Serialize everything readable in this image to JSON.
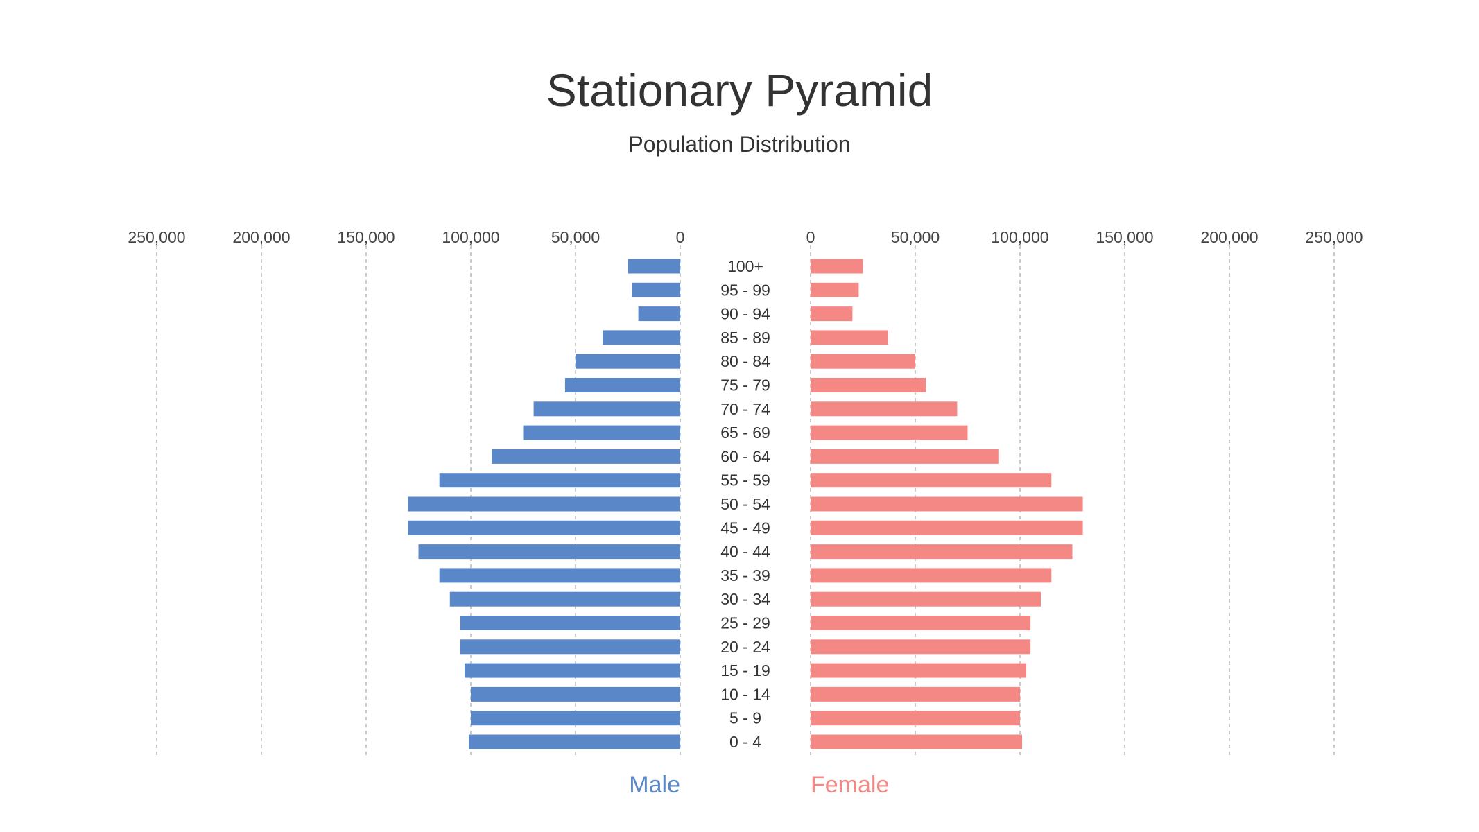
{
  "chart_data": {
    "type": "bar",
    "orientation": "horizontal",
    "layout": "population-pyramid",
    "title": "Stationary Pyramid",
    "subtitle": "Population Distribution",
    "categories": [
      "100+",
      "95 - 99",
      "90 - 94",
      "85 - 89",
      "80 - 84",
      "75 - 79",
      "70 - 74",
      "65 - 69",
      "60 - 64",
      "55 - 59",
      "50 - 54",
      "45 - 49",
      "40 - 44",
      "35 - 39",
      "30 - 34",
      "25 - 29",
      "20 - 24",
      "15 - 19",
      "10 - 14",
      "5 - 9",
      "0 - 4"
    ],
    "series": [
      {
        "name": "Male",
        "side": "left",
        "color": "#5a87c8",
        "values": [
          25000,
          23000,
          20000,
          37000,
          50000,
          55000,
          70000,
          75000,
          90000,
          115000,
          130000,
          130000,
          125000,
          115000,
          110000,
          105000,
          105000,
          103000,
          100000,
          100000,
          101000
        ]
      },
      {
        "name": "Female",
        "side": "right",
        "color": "#f48885",
        "values": [
          25000,
          23000,
          20000,
          37000,
          50000,
          55000,
          70000,
          75000,
          90000,
          115000,
          130000,
          130000,
          125000,
          115000,
          110000,
          105000,
          105000,
          103000,
          100000,
          100000,
          101000
        ]
      }
    ],
    "xlim": [
      0,
      250000
    ],
    "ticks": [
      0,
      50000,
      100000,
      150000,
      200000,
      250000
    ],
    "tick_labels": [
      "0",
      "50,000",
      "100,000",
      "150,000",
      "200,000",
      "250,000"
    ],
    "grid": true,
    "legend_position": "bottom-center"
  }
}
